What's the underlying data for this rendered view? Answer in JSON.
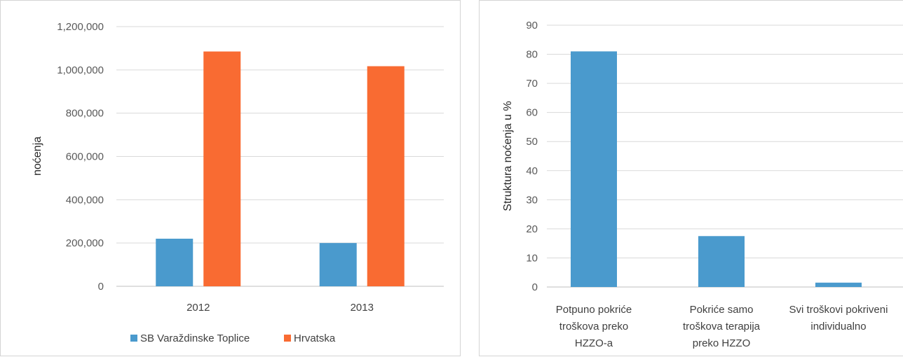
{
  "chart_data": [
    {
      "type": "bar",
      "categories": [
        "2012",
        "2013"
      ],
      "series": [
        {
          "name": "SB Varaždinske Toplice",
          "color": "#4a9acd",
          "values": [
            220000,
            200000
          ]
        },
        {
          "name": "Hrvatska",
          "color": "#f96b32",
          "values": [
            1085000,
            1017000
          ]
        }
      ],
      "ylabel": "noćenja",
      "yticks": [
        "0",
        "200,000",
        "400,000",
        "600,000",
        "800,000",
        "1,000,000",
        "1,200,000"
      ],
      "ylim": [
        0,
        1200000
      ],
      "grid": true,
      "legend": "bottom"
    },
    {
      "type": "bar",
      "categories": [
        [
          "Potpuno pokriće",
          "troškova preko",
          "HZZO-a"
        ],
        [
          "Pokriće samo",
          "troškova terapija",
          "preko HZZO"
        ],
        [
          "Svi troškovi pokriveni",
          "individualno"
        ]
      ],
      "series": [
        {
          "color": "#4a9acd",
          "values": [
            81,
            17.5,
            1.5
          ]
        }
      ],
      "ylabel": "Struktura noćenja u %",
      "yticks": [
        "0",
        "10",
        "20",
        "30",
        "40",
        "50",
        "60",
        "70",
        "80",
        "90"
      ],
      "ylim": [
        0,
        90
      ],
      "grid": true
    }
  ]
}
